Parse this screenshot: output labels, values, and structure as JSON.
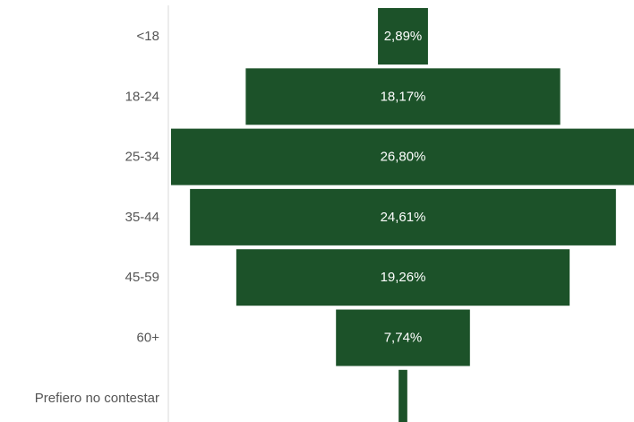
{
  "chart_data": {
    "type": "bar",
    "orientation": "horizontal-centered",
    "categories": [
      "<18",
      "18-24",
      "25-34",
      "35-44",
      "45-59",
      "60+",
      "Prefiero no contestar"
    ],
    "values": [
      2.89,
      18.17,
      26.8,
      24.61,
      19.26,
      7.74,
      0.5
    ],
    "data_labels": [
      "2,89%",
      "18,17%",
      "26,80%",
      "24,61%",
      "19,26%",
      "7,74%",
      ""
    ],
    "xlim": [
      0,
      26.8
    ],
    "grid": false,
    "legend": "none",
    "colors": {
      "bar": "#1c5229",
      "axis": "#d9d9d9",
      "category_text": "#555555",
      "value_text": "#ffffff"
    }
  }
}
